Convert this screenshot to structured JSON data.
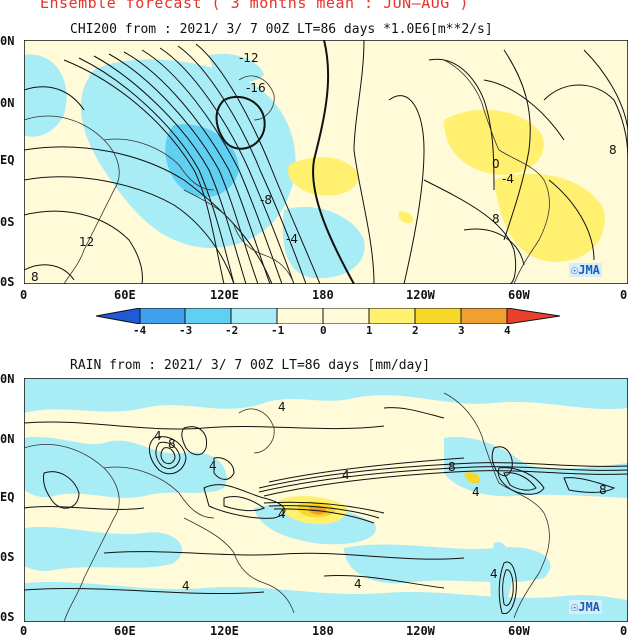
{
  "header": {
    "title": "Ensemble forecast ( 3 months mean : JUN—AUG )"
  },
  "panels": [
    {
      "title": "CHI200 from : 2021/ 3/ 7 00Z LT=86 days  *1.0E6[m**2/s]",
      "lat_labels": [
        "0N",
        "0N",
        "EQ",
        "0S",
        "0S"
      ],
      "lon_labels": [
        "0",
        "60E",
        "120E",
        "180",
        "120W",
        "60W",
        "0"
      ],
      "contour_labels": [
        "-12",
        "-16",
        "-8",
        "-4",
        "8",
        "-4",
        "0",
        "8",
        "12",
        "8"
      ],
      "watermark": "JMA"
    },
    {
      "title": "RAIN  from : 2021/ 3/ 7 00Z LT=86 days  [mm/day]",
      "lat_labels": [
        "0N",
        "0N",
        "EQ",
        "0S",
        "0S"
      ],
      "lon_labels": [
        "0",
        "60E",
        "120E",
        "180",
        "120W",
        "60W",
        "0"
      ],
      "contour_labels": [
        "4",
        "4",
        "8",
        "4",
        "4",
        "8",
        "4",
        "8",
        "4",
        "4",
        "4",
        "4"
      ],
      "watermark": "JMA"
    }
  ],
  "colorbar": {
    "ticks": [
      "-4",
      "-3",
      "-2",
      "-1",
      "0",
      "1",
      "2",
      "3",
      "4"
    ],
    "colors": [
      "#1f5bd8",
      "#3fa0ee",
      "#5fd0f2",
      "#a8ecf6",
      "#fffbd8",
      "#fff070",
      "#f6d82a",
      "#f0a030",
      "#e8402a"
    ]
  }
}
